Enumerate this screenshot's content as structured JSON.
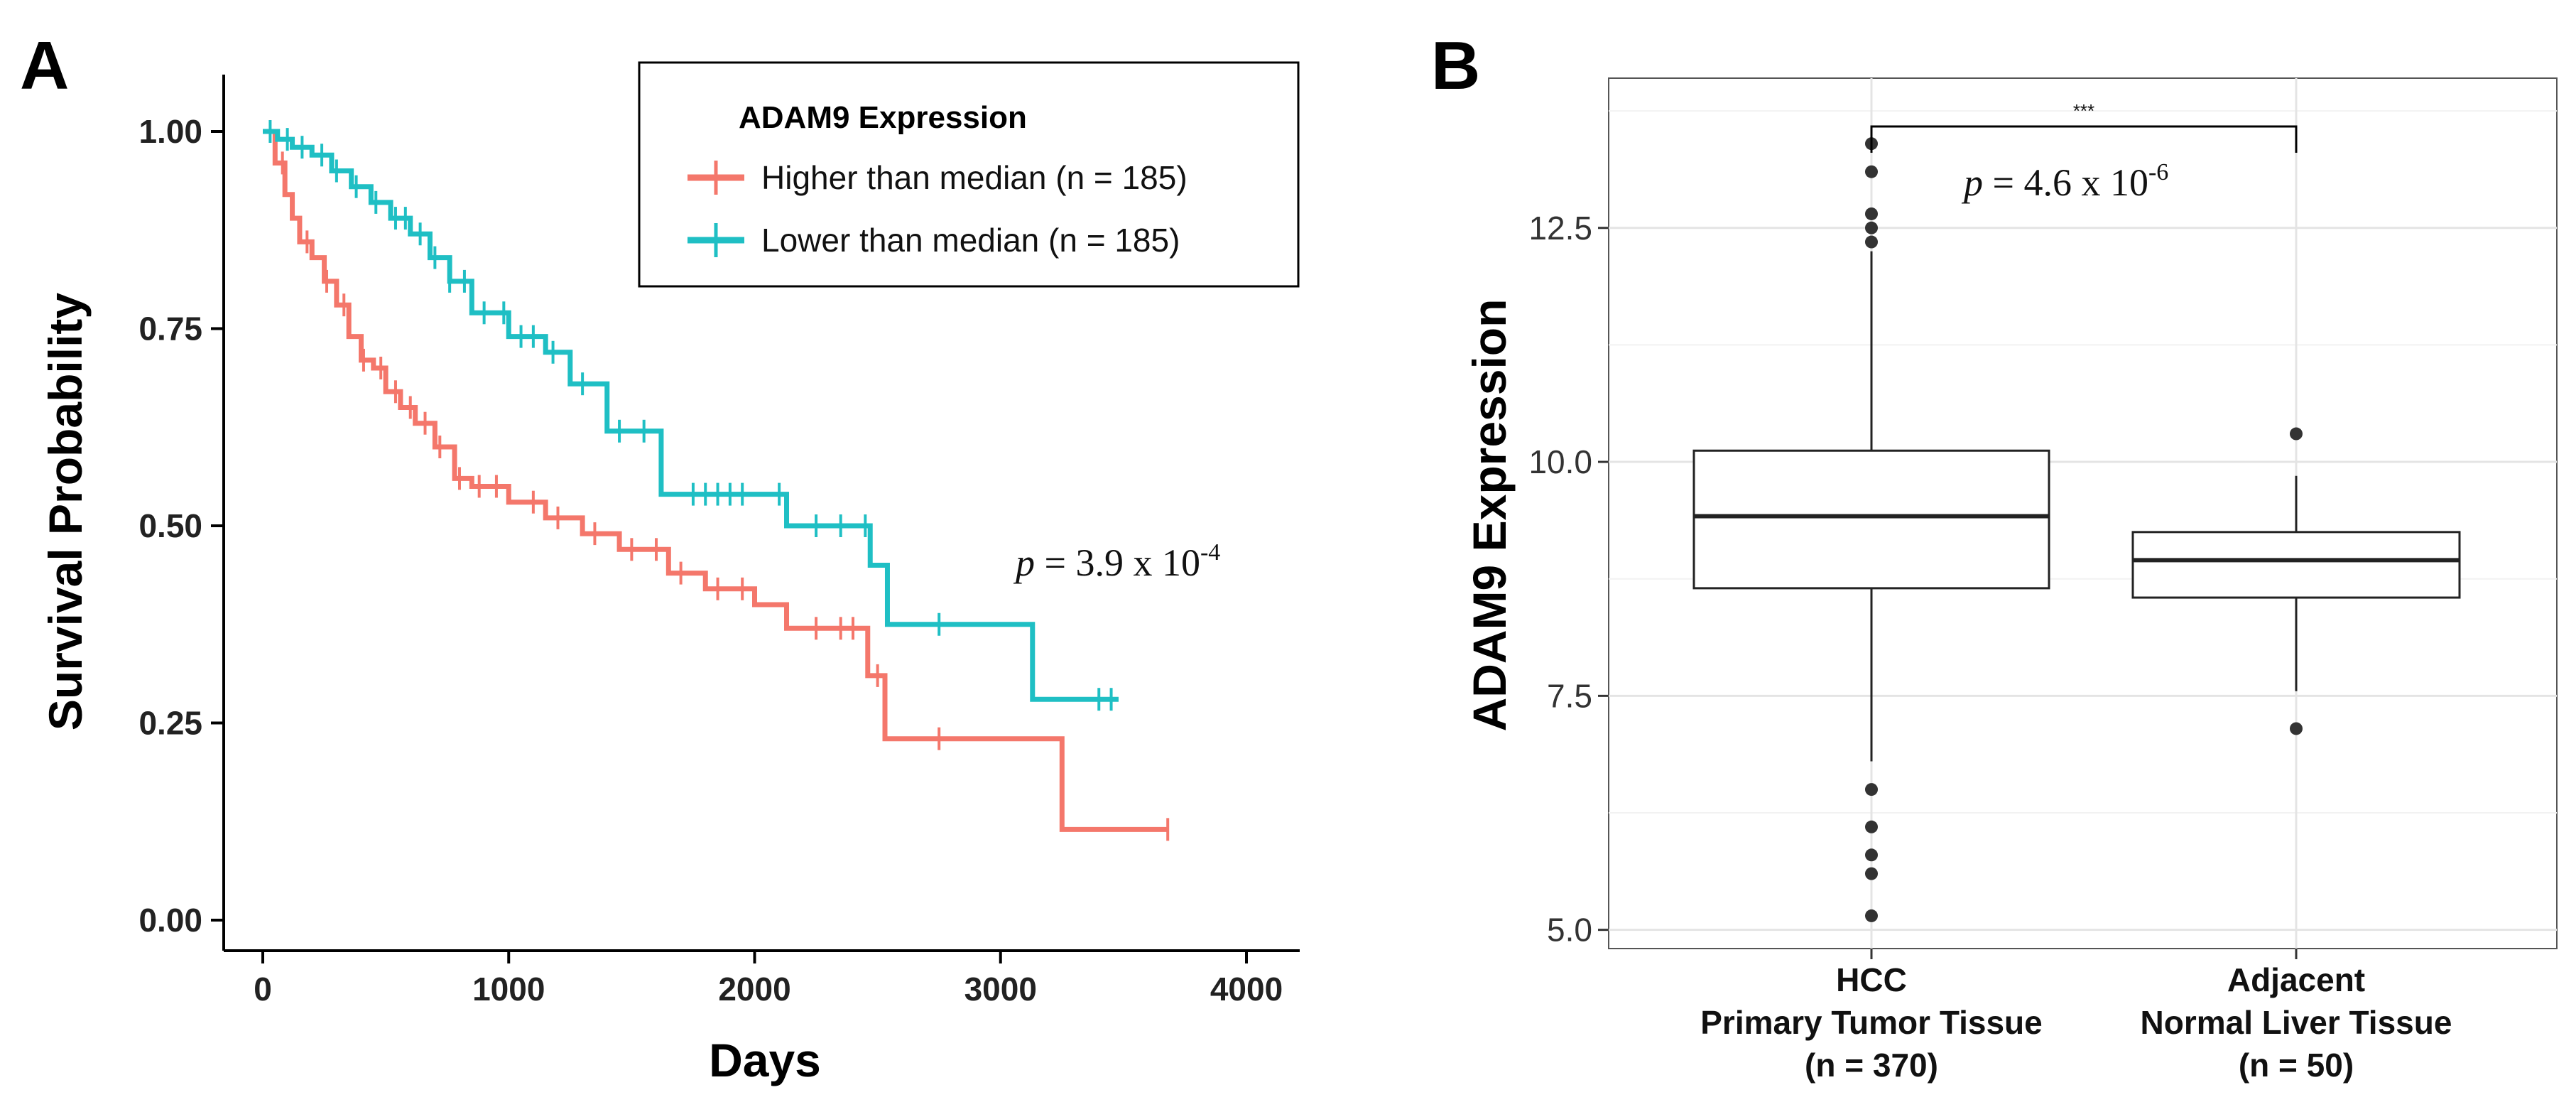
{
  "chart_data": [
    {
      "panel": "A",
      "type": "line",
      "xlabel": "Days",
      "ylabel": "Survival Probability",
      "xlim": [
        0,
        4000
      ],
      "ylim": [
        0,
        1
      ],
      "x_ticks": [
        "0",
        "1000",
        "2000",
        "3000",
        "4000"
      ],
      "y_ticks": [
        "0.00",
        "0.25",
        "0.50",
        "0.75",
        "1.00"
      ],
      "legend": {
        "title": "ADAM9 Expression",
        "placement": "top-right"
      },
      "annotation": {
        "prefix": "p",
        "text": " = 3.9 x 10",
        "exponent": "-4"
      },
      "series": [
        {
          "name": "Higher than median (n = 185)",
          "color": "#F4776B",
          "x": [
            0,
            50,
            90,
            120,
            150,
            200,
            250,
            300,
            350,
            400,
            450,
            500,
            560,
            620,
            700,
            780,
            850,
            1000,
            1150,
            1300,
            1450,
            1650,
            1800,
            2000,
            2130,
            2460,
            2530,
            3250,
            3680
          ],
          "y": [
            1.0,
            0.96,
            0.92,
            0.89,
            0.86,
            0.84,
            0.81,
            0.78,
            0.74,
            0.71,
            0.7,
            0.67,
            0.65,
            0.63,
            0.6,
            0.56,
            0.55,
            0.53,
            0.51,
            0.49,
            0.47,
            0.44,
            0.42,
            0.4,
            0.37,
            0.31,
            0.23,
            0.115,
            0.115
          ],
          "censored_x": [
            80,
            180,
            260,
            330,
            410,
            480,
            540,
            600,
            660,
            720,
            800,
            880,
            950,
            1100,
            1200,
            1350,
            1500,
            1600,
            1700,
            1850,
            1950,
            2250,
            2350,
            2400,
            2500,
            2750,
            3680
          ]
        },
        {
          "name": "Lower than median (n = 185)",
          "color": "#1FBFC4",
          "x": [
            0,
            60,
            120,
            200,
            280,
            360,
            440,
            520,
            600,
            680,
            760,
            850,
            1000,
            1150,
            1250,
            1400,
            1620,
            1700,
            2130,
            2470,
            2540,
            3130,
            3480
          ],
          "y": [
            1.0,
            0.99,
            0.98,
            0.97,
            0.95,
            0.93,
            0.91,
            0.89,
            0.87,
            0.84,
            0.81,
            0.77,
            0.74,
            0.72,
            0.68,
            0.62,
            0.54,
            0.54,
            0.5,
            0.45,
            0.375,
            0.28,
            0.28
          ],
          "censored_x": [
            30,
            100,
            160,
            240,
            300,
            380,
            460,
            540,
            580,
            640,
            700,
            760,
            820,
            900,
            980,
            1050,
            1100,
            1180,
            1300,
            1450,
            1550,
            1750,
            1800,
            1850,
            1900,
            1950,
            2100,
            2250,
            2350,
            2450,
            2750,
            3400,
            3450
          ]
        }
      ]
    },
    {
      "panel": "B",
      "type": "box",
      "ylabel": "ADAM9 Expression",
      "ylim": [
        4.8,
        14.1
      ],
      "y_ticks": [
        "5.0",
        "7.5",
        "10.0",
        "12.5"
      ],
      "significance": "***",
      "annotation": {
        "prefix": "p",
        "text": " = 4.6 x 10",
        "exponent": "-6"
      },
      "groups": [
        {
          "label_lines": [
            "HCC",
            "Primary Tumor Tissue",
            "(n = 370)"
          ],
          "min": 6.8,
          "q1": 8.65,
          "median": 9.42,
          "q3": 10.12,
          "max": 12.25,
          "outliers": [
            13.4,
            13.1,
            12.65,
            12.5,
            12.35,
            6.5,
            6.1,
            5.8,
            5.6,
            5.15
          ]
        },
        {
          "label_lines": [
            "Adjacent",
            "Normal Liver Tissue",
            "(n = 50)"
          ],
          "min": 7.55,
          "q1": 8.55,
          "median": 8.95,
          "q3": 9.25,
          "max": 9.85,
          "outliers": [
            10.3,
            7.15
          ]
        }
      ]
    }
  ]
}
